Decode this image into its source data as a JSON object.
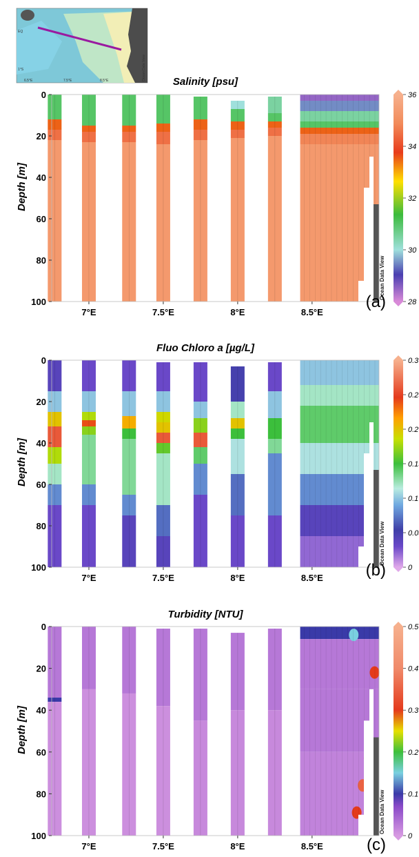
{
  "inset_map": {
    "lat_labels": [
      "EQ",
      "1°S"
    ],
    "lon_labels": [
      "6.5°E",
      "7.5°E",
      "8.5°E"
    ],
    "watermark": "Ocean Data View"
  },
  "watermark": "Ocean Data View",
  "panels": [
    {
      "id": "salinity",
      "title": "Salinity [psu]",
      "ylabel": "Depth [m]",
      "panel_label": "(a)",
      "colorbar_ticks": [
        "36",
        "34",
        "32",
        "30",
        "28"
      ]
    },
    {
      "id": "chlorophyll",
      "title": "Fluo Chloro a [µg/L]",
      "ylabel": "Depth [m]",
      "panel_label": "(b)",
      "colorbar_ticks": [
        "0.3",
        "0.25",
        "0.2",
        "0.15",
        "0.1",
        "0.05",
        "0"
      ]
    },
    {
      "id": "turbidity",
      "title": "Turbidity [NTU]",
      "ylabel": "Depth [m]",
      "panel_label": "(c)",
      "colorbar_ticks": [
        "0.5",
        "0.4",
        "0.3",
        "0.2",
        "0.1",
        "0"
      ]
    }
  ],
  "chart_data": [
    {
      "type": "heatmap",
      "title": "Salinity [psu]",
      "ylabel": "Depth [m]",
      "xlabel": "",
      "x_ticks": [
        "7°E",
        "7.5°E",
        "8°E",
        "8.5°E"
      ],
      "y_ticks": [
        "0",
        "20",
        "40",
        "60",
        "80",
        "100"
      ],
      "xlim": [
        6.75,
        8.95
      ],
      "ylim": [
        0,
        100
      ],
      "y_inverted": true,
      "colorbar_range": [
        28,
        36
      ],
      "stations_lon": [
        6.77,
        7.0,
        7.27,
        7.5,
        7.75,
        8.0,
        8.25
      ],
      "profiles": [
        {
          "lon": 6.77,
          "top_depth": 0,
          "layers": [
            {
              "to": 12,
              "value": 31.0
            },
            {
              "to": 17,
              "value": 33.5
            },
            {
              "to": 22,
              "value": 34.5
            },
            {
              "to": 100,
              "value": 35.3
            }
          ]
        },
        {
          "lon": 7.0,
          "top_depth": 0,
          "layers": [
            {
              "to": 15,
              "value": 31.0
            },
            {
              "to": 18,
              "value": 33.5
            },
            {
              "to": 23,
              "value": 34.5
            },
            {
              "to": 100,
              "value": 35.3
            }
          ]
        },
        {
          "lon": 7.27,
          "top_depth": 0,
          "layers": [
            {
              "to": 15,
              "value": 31.0
            },
            {
              "to": 18,
              "value": 33.5
            },
            {
              "to": 23,
              "value": 34.5
            },
            {
              "to": 100,
              "value": 35.3
            }
          ]
        },
        {
          "lon": 7.5,
          "top_depth": 0,
          "layers": [
            {
              "to": 14,
              "value": 31.0
            },
            {
              "to": 18,
              "value": 33.5
            },
            {
              "to": 24,
              "value": 34.5
            },
            {
              "to": 100,
              "value": 35.3
            }
          ]
        },
        {
          "lon": 7.75,
          "top_depth": 1,
          "layers": [
            {
              "to": 12,
              "value": 31.0
            },
            {
              "to": 17,
              "value": 33.5
            },
            {
              "to": 22,
              "value": 34.5
            },
            {
              "to": 100,
              "value": 35.3
            }
          ]
        },
        {
          "lon": 8.0,
          "top_depth": 3,
          "layers": [
            {
              "to": 7,
              "value": 30.0
            },
            {
              "to": 13,
              "value": 31.0
            },
            {
              "to": 17,
              "value": 33.5
            },
            {
              "to": 21,
              "value": 34.5
            },
            {
              "to": 100,
              "value": 35.3
            }
          ]
        },
        {
          "lon": 8.25,
          "top_depth": 1,
          "layers": [
            {
              "to": 9,
              "value": 30.5
            },
            {
              "to": 13,
              "value": 31.0
            },
            {
              "to": 16,
              "value": 33.5
            },
            {
              "to": 20,
              "value": 34.5
            },
            {
              "to": 100,
              "value": 35.3
            }
          ]
        }
      ],
      "near_shore_section": {
        "lon_range": [
          8.42,
          8.95
        ],
        "layers": [
          {
            "to": 3,
            "value": 28.5
          },
          {
            "to": 8,
            "value": 29.5
          },
          {
            "to": 13,
            "value": 30.5
          },
          {
            "to": 16,
            "value": 31.0
          },
          {
            "to": 19,
            "value": 33.5
          },
          {
            "to": 24,
            "value": 34.8
          },
          {
            "to": 100,
            "value": 35.3
          }
        ]
      }
    },
    {
      "type": "heatmap",
      "title": "Fluo Chloro a [µg/L]",
      "ylabel": "Depth [m]",
      "xlabel": "",
      "x_ticks": [
        "7°E",
        "7.5°E",
        "8°E",
        "8.5°E"
      ],
      "y_ticks": [
        "0",
        "20",
        "40",
        "60",
        "80",
        "100"
      ],
      "xlim": [
        6.75,
        8.95
      ],
      "ylim": [
        0,
        100
      ],
      "y_inverted": true,
      "colorbar_range": [
        0,
        0.3
      ],
      "stations_lon": [
        6.77,
        7.0,
        7.27,
        7.5,
        7.75,
        8.0,
        8.25
      ],
      "profiles": [
        {
          "lon": 6.77,
          "top_depth": 0,
          "layers": [
            {
              "to": 15,
              "value": 0.04
            },
            {
              "to": 25,
              "value": 0.1
            },
            {
              "to": 32,
              "value": 0.2
            },
            {
              "to": 42,
              "value": 0.26
            },
            {
              "to": 50,
              "value": 0.18
            },
            {
              "to": 60,
              "value": 0.12
            },
            {
              "to": 70,
              "value": 0.08
            },
            {
              "to": 100,
              "value": 0.03
            }
          ]
        },
        {
          "lon": 7.0,
          "top_depth": 0,
          "layers": [
            {
              "to": 15,
              "value": 0.03
            },
            {
              "to": 25,
              "value": 0.1
            },
            {
              "to": 29,
              "value": 0.18
            },
            {
              "to": 32,
              "value": 0.24
            },
            {
              "to": 36,
              "value": 0.17
            },
            {
              "to": 60,
              "value": 0.13
            },
            {
              "to": 70,
              "value": 0.08
            },
            {
              "to": 100,
              "value": 0.03
            }
          ]
        },
        {
          "lon": 7.27,
          "top_depth": 0,
          "layers": [
            {
              "to": 15,
              "value": 0.03
            },
            {
              "to": 27,
              "value": 0.1
            },
            {
              "to": 33,
              "value": 0.21
            },
            {
              "to": 38,
              "value": 0.15
            },
            {
              "to": 65,
              "value": 0.13
            },
            {
              "to": 75,
              "value": 0.08
            },
            {
              "to": 100,
              "value": 0.04
            }
          ]
        },
        {
          "lon": 7.5,
          "top_depth": 1,
          "layers": [
            {
              "to": 15,
              "value": 0.03
            },
            {
              "to": 25,
              "value": 0.1
            },
            {
              "to": 30,
              "value": 0.19
            },
            {
              "to": 35,
              "value": 0.2
            },
            {
              "to": 40,
              "value": 0.26
            },
            {
              "to": 45,
              "value": 0.16
            },
            {
              "to": 70,
              "value": 0.12
            },
            {
              "to": 85,
              "value": 0.07
            },
            {
              "to": 100,
              "value": 0.04
            }
          ]
        },
        {
          "lon": 7.75,
          "top_depth": 1,
          "layers": [
            {
              "to": 20,
              "value": 0.03
            },
            {
              "to": 28,
              "value": 0.1
            },
            {
              "to": 35,
              "value": 0.17
            },
            {
              "to": 42,
              "value": 0.26
            },
            {
              "to": 50,
              "value": 0.14
            },
            {
              "to": 65,
              "value": 0.08
            },
            {
              "to": 100,
              "value": 0.03
            }
          ]
        },
        {
          "lon": 8.0,
          "top_depth": 3,
          "layers": [
            {
              "to": 20,
              "value": 0.05
            },
            {
              "to": 28,
              "value": 0.12
            },
            {
              "to": 33,
              "value": 0.2
            },
            {
              "to": 38,
              "value": 0.15
            },
            {
              "to": 55,
              "value": 0.11
            },
            {
              "to": 75,
              "value": 0.07
            },
            {
              "to": 100,
              "value": 0.03
            }
          ]
        },
        {
          "lon": 8.25,
          "top_depth": 1,
          "layers": [
            {
              "to": 15,
              "value": 0.03
            },
            {
              "to": 28,
              "value": 0.1
            },
            {
              "to": 38,
              "value": 0.15
            },
            {
              "to": 45,
              "value": 0.13
            },
            {
              "to": 75,
              "value": 0.08
            },
            {
              "to": 100,
              "value": 0.03
            }
          ]
        }
      ],
      "near_shore_section": {
        "lon_range": [
          8.42,
          8.95
        ],
        "layers": [
          {
            "to": 12,
            "value": 0.1
          },
          {
            "to": 22,
            "value": 0.12
          },
          {
            "to": 40,
            "value": 0.14
          },
          {
            "to": 55,
            "value": 0.11
          },
          {
            "to": 70,
            "value": 0.08
          },
          {
            "to": 85,
            "value": 0.04
          },
          {
            "to": 100,
            "value": 0.02
          }
        ]
      }
    },
    {
      "type": "heatmap",
      "title": "Turbidity [NTU]",
      "ylabel": "Depth [m]",
      "xlabel": "",
      "x_ticks": [
        "7°E",
        "7.5°E",
        "8°E",
        "8.5°E"
      ],
      "y_ticks": [
        "0",
        "20",
        "40",
        "60",
        "80",
        "100"
      ],
      "xlim": [
        6.75,
        8.95
      ],
      "ylim": [
        0,
        100
      ],
      "y_inverted": true,
      "colorbar_range": [
        0,
        0.5
      ],
      "stations_lon": [
        6.77,
        7.0,
        7.27,
        7.5,
        7.75,
        8.0,
        8.25
      ],
      "profiles": [
        {
          "lon": 6.77,
          "top_depth": 0,
          "layers": [
            {
              "to": 34,
              "value": 0.03
            },
            {
              "to": 36,
              "value": 0.1
            },
            {
              "to": 100,
              "value": 0.01
            }
          ]
        },
        {
          "lon": 7.0,
          "top_depth": 0,
          "layers": [
            {
              "to": 30,
              "value": 0.03
            },
            {
              "to": 100,
              "value": 0.01
            }
          ]
        },
        {
          "lon": 7.27,
          "top_depth": 0,
          "layers": [
            {
              "to": 32,
              "value": 0.03
            },
            {
              "to": 100,
              "value": 0.01
            }
          ]
        },
        {
          "lon": 7.5,
          "top_depth": 1,
          "layers": [
            {
              "to": 38,
              "value": 0.03
            },
            {
              "to": 100,
              "value": 0.01
            }
          ]
        },
        {
          "lon": 7.75,
          "top_depth": 1,
          "layers": [
            {
              "to": 45,
              "value": 0.03
            },
            {
              "to": 100,
              "value": 0.015
            }
          ]
        },
        {
          "lon": 8.0,
          "top_depth": 3,
          "layers": [
            {
              "to": 40,
              "value": 0.03
            },
            {
              "to": 100,
              "value": 0.015
            }
          ]
        },
        {
          "lon": 8.25,
          "top_depth": 1,
          "layers": [
            {
              "to": 40,
              "value": 0.03
            },
            {
              "to": 100,
              "value": 0.015
            }
          ]
        }
      ],
      "near_shore_section": {
        "lon_range": [
          8.42,
          8.95
        ],
        "layers": [
          {
            "to": 6,
            "value": 0.1
          },
          {
            "to": 30,
            "value": 0.03
          },
          {
            "to": 60,
            "value": 0.03
          },
          {
            "to": 100,
            "value": 0.02
          }
        ],
        "hotspots": [
          {
            "lon": 8.78,
            "depth": 4,
            "value": 0.15
          },
          {
            "lon": 8.92,
            "depth": 22,
            "value": 0.3
          },
          {
            "lon": 8.88,
            "depth": 63,
            "value": 0.3
          },
          {
            "lon": 8.84,
            "depth": 76,
            "value": 0.35
          },
          {
            "lon": 8.8,
            "depth": 89,
            "value": 0.3
          }
        ]
      }
    }
  ]
}
